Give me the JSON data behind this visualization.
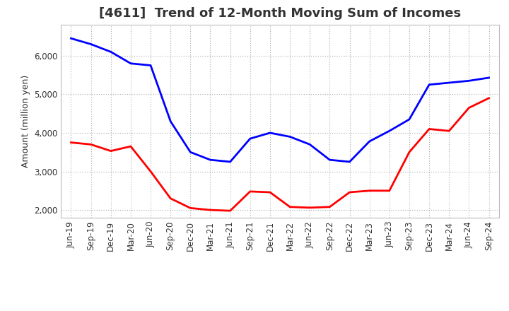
{
  "title": "[4611]  Trend of 12-Month Moving Sum of Incomes",
  "ylabel": "Amount (million yen)",
  "x_labels": [
    "Jun-19",
    "Sep-19",
    "Dec-19",
    "Mar-20",
    "Jun-20",
    "Sep-20",
    "Dec-20",
    "Mar-21",
    "Jun-21",
    "Sep-21",
    "Dec-21",
    "Mar-22",
    "Jun-22",
    "Sep-22",
    "Dec-22",
    "Mar-23",
    "Jun-23",
    "Sep-23",
    "Dec-23",
    "Mar-24",
    "Jun-24",
    "Sep-24"
  ],
  "ordinary_income": [
    6450,
    6300,
    6100,
    5800,
    5750,
    4300,
    3500,
    3300,
    3250,
    3850,
    4000,
    3900,
    3700,
    3300,
    3250,
    3780,
    4050,
    4350,
    5250,
    5300,
    5350,
    5430
  ],
  "net_income": [
    3750,
    3700,
    3530,
    3650,
    3000,
    2300,
    2050,
    2000,
    1980,
    2480,
    2460,
    2080,
    2060,
    2080,
    2460,
    2500,
    2500,
    3500,
    4100,
    4050,
    4650,
    4900
  ],
  "ordinary_color": "#0000FF",
  "net_color": "#FF0000",
  "ylim_min": 1800,
  "ylim_max": 6800,
  "yticks": [
    2000,
    3000,
    4000,
    5000,
    6000
  ],
  "line_width": 2.0,
  "title_fontsize": 13,
  "label_fontsize": 9,
  "tick_fontsize": 8.5,
  "legend_fontsize": 9.5
}
